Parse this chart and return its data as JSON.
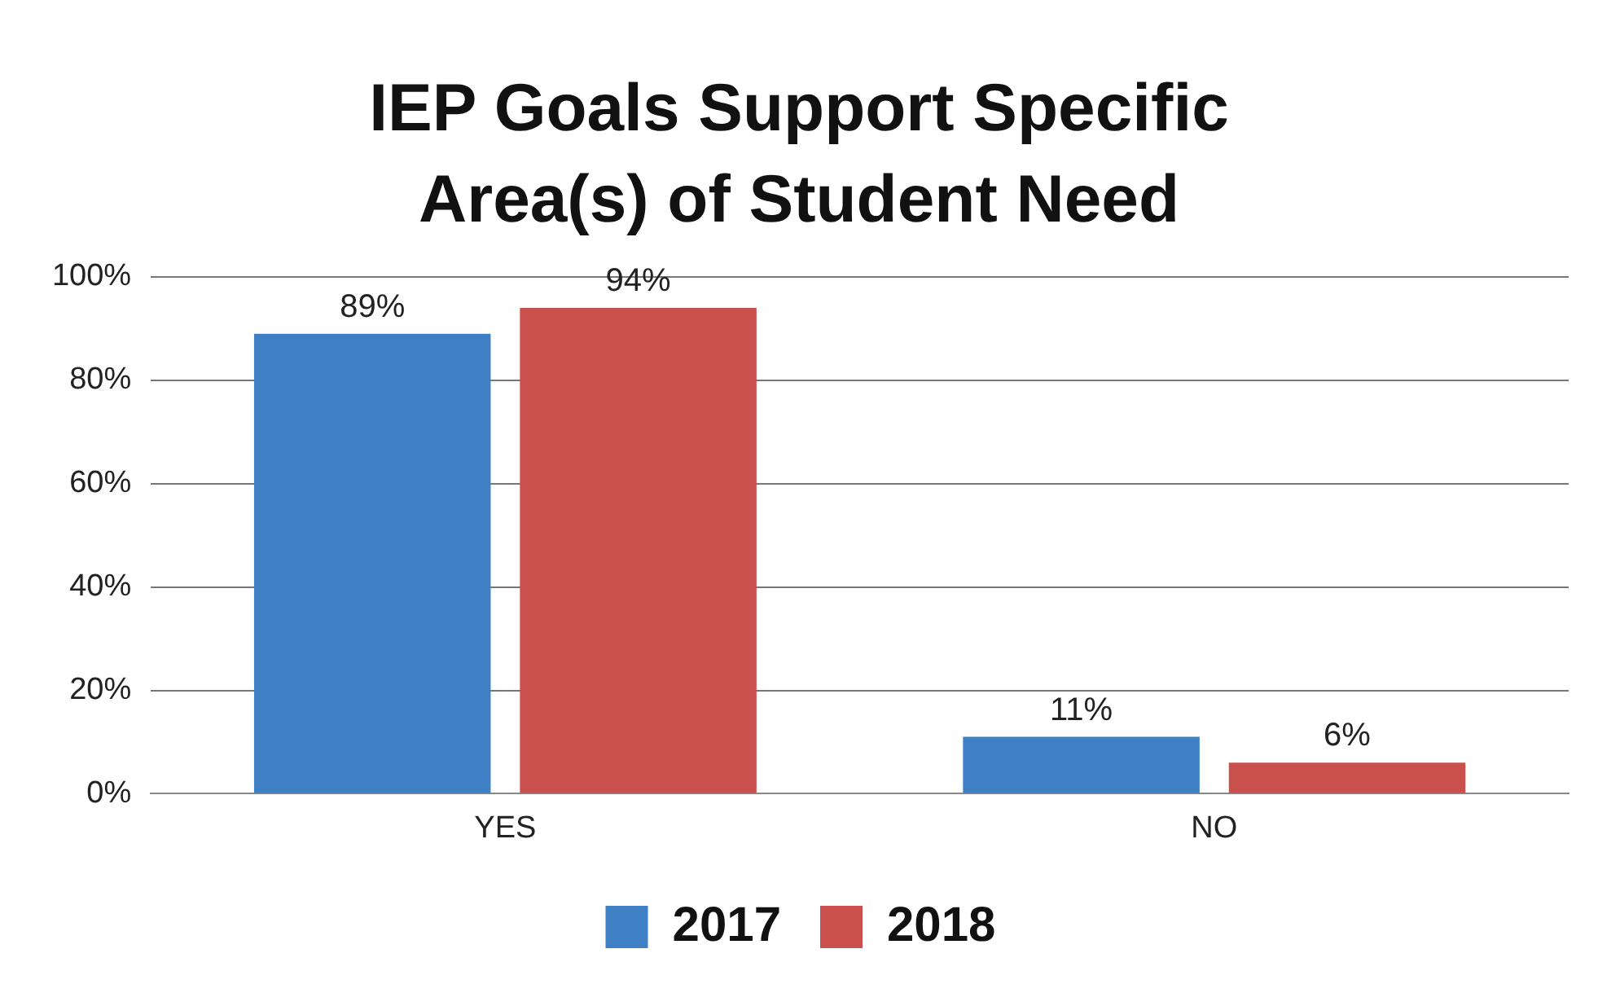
{
  "chart_data": {
    "type": "bar",
    "title": "IEP Goals  Support Specific Area(s) of Student  Need",
    "categories": [
      "YES",
      "NO"
    ],
    "series": [
      {
        "name": "2017",
        "color": "#3f7fc4",
        "values": [
          89,
          11
        ],
        "value_labels": [
          "89%",
          "11%"
        ]
      },
      {
        "name": "2018",
        "color": "#c9504d",
        "values": [
          94,
          6
        ],
        "value_labels": [
          "94%",
          "6%"
        ]
      }
    ],
    "ylim": [
      0,
      100
    ],
    "yticks": [
      {
        "value": 0,
        "label": "0%"
      },
      {
        "value": 20,
        "label": "20%"
      },
      {
        "value": 40,
        "label": "40%"
      },
      {
        "value": 60,
        "label": "60%"
      },
      {
        "value": 80,
        "label": "80%"
      },
      {
        "value": 100,
        "label": "100%"
      }
    ],
    "grid": "y",
    "legend": "bottom"
  }
}
